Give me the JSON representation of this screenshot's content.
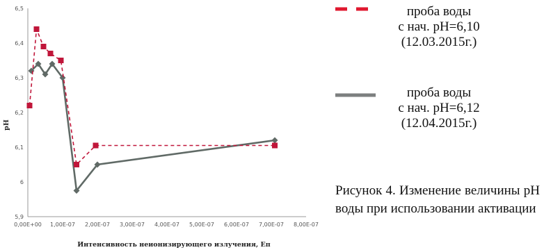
{
  "chart_data": {
    "type": "line",
    "title": "",
    "xlabel": "Интенсивность неионизирующего излучения, Еп",
    "ylabel": "pH",
    "xlim": [
      0,
      8e-07
    ],
    "ylim": [
      5.9,
      6.5
    ],
    "x_tick_labels": [
      "0,00E+00",
      "1,00E-07",
      "2,00E-07",
      "3,00E-07",
      "4,00E-07",
      "5,00E-07",
      "6,00E-07",
      "7,00E-07",
      "8,00E-07"
    ],
    "x_ticks": [
      0,
      1e-07,
      2e-07,
      3e-07,
      4e-07,
      5e-07,
      6e-07,
      7e-07,
      8e-07
    ],
    "y_tick_labels": [
      "5,9",
      "6",
      "6,1",
      "6,2",
      "6,3",
      "6,4",
      "6,5"
    ],
    "y_ticks": [
      5.9,
      6.0,
      6.1,
      6.2,
      6.3,
      6.4,
      6.5
    ],
    "grid": false,
    "legend_position": "right",
    "series": [
      {
        "name": "проба воды\nс нач. pH=6,10\n(12.03.2015г.)",
        "color": "#c0163a",
        "style": "dashed",
        "marker": "square",
        "x": [
          5e-09,
          2.5e-08,
          4.5e-08,
          6.5e-08,
          9.5e-08,
          1.4e-07,
          1.95e-07,
          7.1e-07
        ],
        "y": [
          6.22,
          6.44,
          6.39,
          6.37,
          6.35,
          6.05,
          6.105,
          6.105
        ]
      },
      {
        "name": "проба воды\nс нач. pH=6,12\n(12.04.2015г.)",
        "color": "#606a66",
        "style": "solid",
        "marker": "diamond",
        "x": [
          1e-08,
          3e-08,
          5e-08,
          7e-08,
          1e-07,
          1.4e-07,
          2e-07,
          7.1e-07
        ],
        "y": [
          6.32,
          6.34,
          6.31,
          6.34,
          6.3,
          5.975,
          6.05,
          6.12
        ]
      }
    ]
  },
  "legend": {
    "entries": [
      "проба воды\nс нач. pH=6,10\n(12.03.2015г.)",
      "проба воды\nс нач. pH=6,12\n(12.04.2015г.)"
    ]
  },
  "caption": "Рисунок 4. Изменение величины pH воды при использовании активации"
}
